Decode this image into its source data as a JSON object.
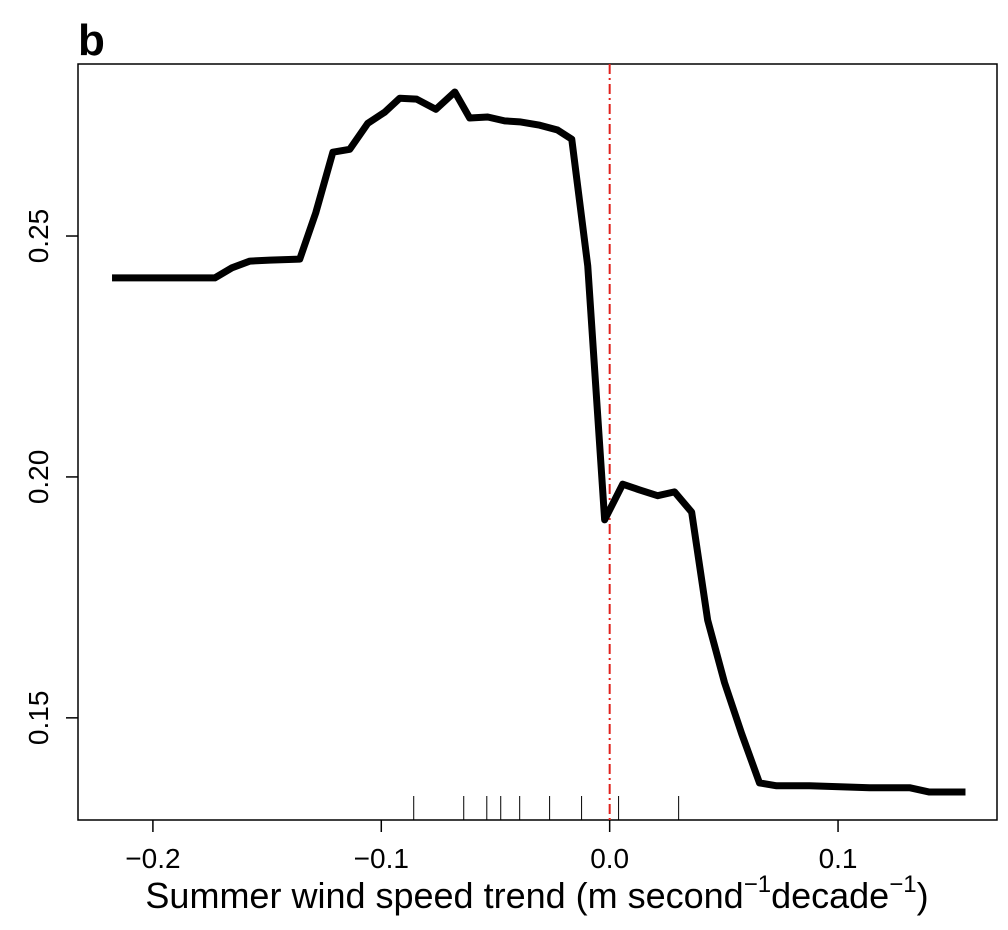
{
  "chart_data": {
    "type": "line",
    "panel_label": "b",
    "xlabel_parts": [
      "Summer wind speed trend (m second",
      "−1",
      "decade",
      "−1",
      ")"
    ],
    "x": [
      -0.2179,
      -0.1729,
      -0.1654,
      -0.1575,
      -0.1488,
      -0.1357,
      -0.1287,
      -0.1212,
      -0.1138,
      -0.1059,
      -0.0985,
      -0.0919,
      -0.0845,
      -0.0761,
      -0.0678,
      -0.0613,
      -0.0534,
      -0.046,
      -0.0394,
      -0.0306,
      -0.0228,
      -0.0166,
      -0.0096,
      -0.0022,
      0.0057,
      0.0131,
      0.021,
      0.0284,
      0.0359,
      0.0429,
      0.0503,
      0.0578,
      0.0656,
      0.0731,
      0.0875,
      0.1007,
      0.1138,
      0.1313,
      0.14,
      0.1558
    ],
    "values": [
      0.2413,
      0.2413,
      0.2434,
      0.2448,
      0.245,
      0.2452,
      0.2548,
      0.2674,
      0.268,
      0.2734,
      0.2757,
      0.2786,
      0.2784,
      0.2763,
      0.2799,
      0.2745,
      0.2747,
      0.2739,
      0.2737,
      0.273,
      0.272,
      0.2701,
      0.2438,
      0.1911,
      0.1985,
      0.1973,
      0.1961,
      0.1969,
      0.1927,
      0.1703,
      0.1573,
      0.1467,
      0.1365,
      0.1359,
      0.1359,
      0.1357,
      0.1355,
      0.1355,
      0.1346,
      0.1346
    ],
    "color": "#000000",
    "rug": [
      -0.0858,
      -0.0639,
      -0.0538,
      -0.0477,
      -0.0394,
      -0.0263,
      -0.0123,
      0.0039,
      0.0302
    ],
    "vline": 0,
    "vline_color": "#e0201b",
    "xlim": [
      -0.2328,
      0.1696
    ],
    "ylim": [
      0.1288,
      0.2857
    ],
    "xticks": [
      {
        "value": -0.2,
        "label": "−0.2"
      },
      {
        "value": -0.1,
        "label": "−0.1"
      },
      {
        "value": 0,
        "label": "0.0"
      },
      0.1
    ],
    "yticks": [
      0.15,
      {
        "value": 0.2,
        "label": "0.20"
      },
      0.25
    ]
  }
}
